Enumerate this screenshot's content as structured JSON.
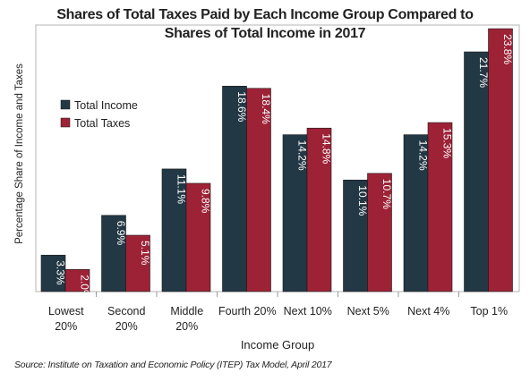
{
  "chart_data": {
    "type": "bar",
    "title_line1": "Shares of Total Taxes Paid by Each Income Group Compared to",
    "title_line2": "Shares of Total Income in 2017",
    "xlabel": "Income Group",
    "ylabel": "Percentage Share of Income and Taxes",
    "categories": [
      [
        "Lowest",
        "20%"
      ],
      [
        "Second",
        "20%"
      ],
      [
        "Middle",
        "20%"
      ],
      [
        "Fourth 20%"
      ],
      [
        "Next 10%"
      ],
      [
        "Next 5%"
      ],
      [
        "Next 4%"
      ],
      [
        "Top 1%"
      ]
    ],
    "series": [
      {
        "name": "Total Income",
        "color": "#233845",
        "values": [
          3.3,
          6.9,
          11.1,
          18.6,
          14.2,
          10.1,
          14.2,
          21.7
        ],
        "labels": [
          "3.3%",
          "6.9%",
          "11.1%",
          "18.6%",
          "14.2%",
          "10.1%",
          "14.2%",
          "21.7%"
        ]
      },
      {
        "name": "Total Taxes",
        "color": "#9e2236",
        "values": [
          2.0,
          5.1,
          9.8,
          18.4,
          14.8,
          10.7,
          15.3,
          23.8
        ],
        "labels": [
          "2.0%",
          "5.1%",
          "9.8%",
          "18.4%",
          "14.8%",
          "10.7%",
          "15.3%",
          "23.8%"
        ]
      }
    ],
    "ylim": [
      0,
      24
    ],
    "legend_position": "top-left",
    "grid": false
  },
  "source": "Source: Institute on Taxation and Economic Policy (ITEP) Tax Model, April 2017"
}
